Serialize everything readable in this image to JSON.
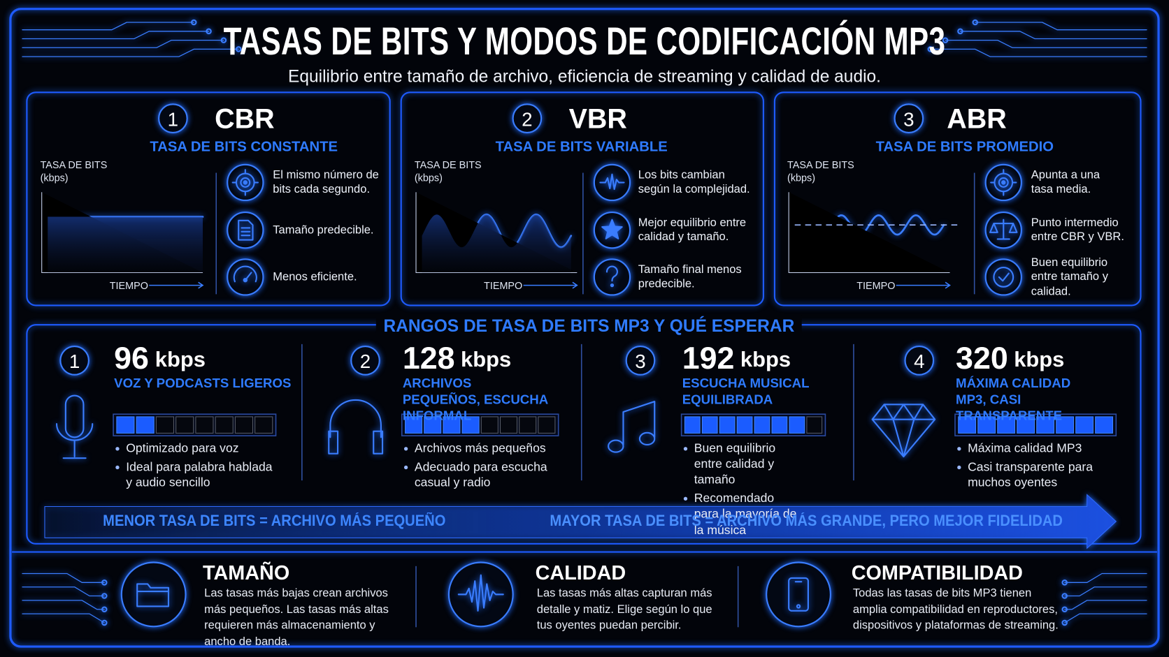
{
  "header": {
    "title": "TASAS DE BITS Y MODOS DE CODIFICACIÓN MP3",
    "subtitle": "Equilibrio entre tamaño de archivo, eficiencia de streaming y calidad de audio."
  },
  "modes": [
    {
      "number": 1,
      "name": "CBR",
      "subtitle": "TASA DE BITS CONSTANTE",
      "y_axis_label": "TASA DE BITS (kbps)",
      "x_axis_label": "TIEMPO",
      "features": [
        "El mismo número de bits cada segundo.",
        "Tamaño predecible.",
        "Menos eficiente."
      ]
    },
    {
      "number": 2,
      "name": "VBR",
      "subtitle": "TASA DE BITS VARIABLE",
      "y_axis_label": "TASA DE BITS (kbps)",
      "x_axis_label": "TIEMPO",
      "features": [
        "Los bits cambian según la complejidad.",
        "Mejor equilibrio entre calidad y tamaño.",
        "Tamaño final menos predecible."
      ]
    },
    {
      "number": 3,
      "name": "ABR",
      "subtitle": "TASA DE BITS PROMEDIO",
      "y_axis_label": "TASA DE BITS (kbps)",
      "x_axis_label": "TIEMPO",
      "features": [
        "Apunta a una tasa media.",
        "Punto intermedio entre CBR y VBR.",
        "Buen equilibrio entre tamaño y calidad."
      ]
    }
  ],
  "ranges": {
    "title": "RANGOS DE TASA DE BITS MP3 Y QUÉ ESPERAR",
    "meter_segments": 8,
    "items": [
      {
        "number": 1,
        "rate": 96,
        "unit": "kbps",
        "description": "VOZ Y PODCASTS LIGEROS",
        "level": 2,
        "bullets": [
          "Optimizado para voz",
          "Ideal para palabra hablada y audio sencillo"
        ]
      },
      {
        "number": 2,
        "rate": 128,
        "unit": "kbps",
        "description": "ARCHIVOS PEQUEÑOS, ESCUCHA INFORMAL",
        "level": 4,
        "bullets": [
          "Archivos más pequeños",
          "Adecuado para escucha casual y radio"
        ]
      },
      {
        "number": 3,
        "rate": 192,
        "unit": "kbps",
        "description": "ESCUCHA MUSICAL EQUILIBRADA",
        "level": 7,
        "bullets": [
          "Buen equilibrio entre calidad y tamaño",
          "Recomendado para la mayoría de la música"
        ]
      },
      {
        "number": 4,
        "rate": 320,
        "unit": "kbps",
        "description": "MÁXIMA CALIDAD MP3, CASI TRANSPARENTE",
        "level": 8,
        "bullets": [
          "Máxima calidad MP3",
          "Casi transparente para muchos oyentes"
        ]
      }
    ],
    "scale_low": "MENOR TASA DE BITS = ARCHIVO MÁS PEQUEÑO",
    "scale_high": "MAYOR TASA DE BITS = ARCHIVO MÁS GRANDE, PERO MEJOR FIDELIDAD"
  },
  "footer": [
    {
      "title": "TAMAÑO",
      "text": "Las tasas más bajas crean archivos más pequeños. Las tasas más altas requieren más almacenamiento y ancho de banda."
    },
    {
      "title": "CALIDAD",
      "text": "Las tasas más altas capturan más detalle y matiz. Elige según lo que tus oyentes puedan percibir."
    },
    {
      "title": "COMPATIBILIDAD",
      "text": "Todas las tasas de bits MP3 tienen amplia compatibilidad en reproductores, dispositivos y plataformas de streaming."
    }
  ]
}
